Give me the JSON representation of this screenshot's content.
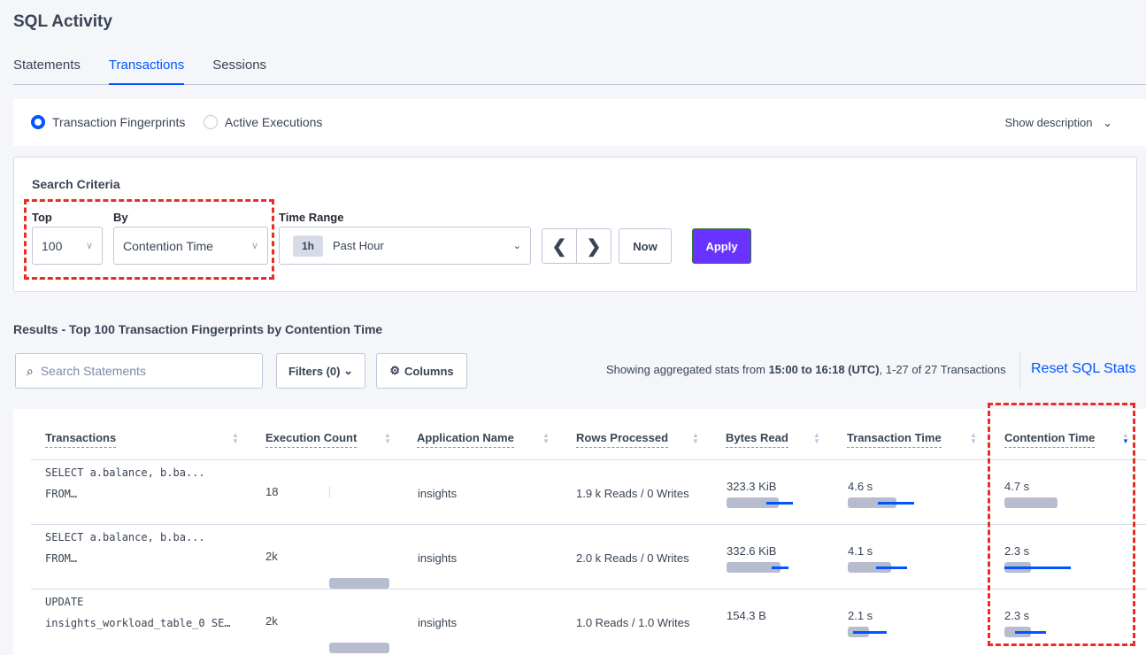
{
  "title": "SQL Activity",
  "tabs": [
    {
      "label": "Statements"
    },
    {
      "label": "Transactions",
      "active": true
    },
    {
      "label": "Sessions"
    }
  ],
  "view": {
    "options": [
      {
        "label": "Transaction Fingerprints",
        "selected": true
      },
      {
        "label": "Active Executions",
        "selected": false
      }
    ],
    "show_description": "Show description"
  },
  "search": {
    "heading": "Search Criteria",
    "top_label": "Top",
    "top_value": "100",
    "by_label": "By",
    "by_value": "Contention Time",
    "time_label": "Time Range",
    "time_badge": "1h",
    "time_value": "Past Hour",
    "now": "Now",
    "apply": "Apply"
  },
  "results": {
    "heading": "Results - Top 100 Transaction Fingerprints by Contention Time",
    "search_placeholder": "Search Statements",
    "filters": "Filters (0)",
    "columns": "Columns",
    "summary_prefix": "Showing aggregated stats from ",
    "summary_bold": "15:00 to 16:18 (UTC)",
    "summary_suffix": ", 1-27 of 27 Transactions",
    "reset": "Reset SQL Stats"
  },
  "colors": {
    "accent": "#0055ff",
    "apply": "#6933ff",
    "highlight": "#ee2a24"
  },
  "table": {
    "headers": [
      "Transactions",
      "Execution Count",
      "Application Name",
      "Rows Processed",
      "Bytes Read",
      "Transaction Time",
      "Contention Time"
    ],
    "sorted_column": "Contention Time",
    "sort_direction": "descending",
    "rows": [
      {
        "tx1": "SELECT a.balance, b.ba...",
        "tx2": "FROM…",
        "exec": "18",
        "exec_bar": 0.01,
        "app": "insights",
        "rows": "1.9 k Reads / 0 Writes",
        "bytes": "323.3 KiB",
        "bytes_bar": [
          0.74,
          0.56,
          0.94
        ],
        "txtime": "4.6 s",
        "txtime_bar": [
          0.69,
          0.42,
          0.94
        ],
        "cont": "4.7 s",
        "cont_bar": [
          0.75,
          null,
          null
        ]
      },
      {
        "tx1": "SELECT a.balance, b.ba...",
        "tx2": "FROM…",
        "exec": "2k",
        "exec_bar": 0.85,
        "app": "insights",
        "rows": "2.0 k Reads / 0 Writes",
        "bytes": "332.6 KiB",
        "bytes_bar": [
          0.76,
          0.64,
          0.88
        ],
        "txtime": "4.1 s",
        "txtime_bar": [
          0.61,
          0.4,
          0.84
        ],
        "cont": "2.3 s",
        "cont_bar": [
          0.38,
          0,
          0.94
        ]
      },
      {
        "tx1": "UPDATE",
        "tx2": "insights_workload_table_0 SE…",
        "exec": "2k",
        "exec_bar": 0.85,
        "app": "insights",
        "rows": "1.0 Reads / 1.0 Writes",
        "bytes": "154.3 B",
        "bytes_bar": null,
        "txtime": "2.1 s",
        "txtime_bar": [
          0.3,
          0.08,
          0.55
        ],
        "cont": "2.3 s",
        "cont_bar": [
          0.38,
          0.15,
          0.59
        ]
      }
    ]
  }
}
